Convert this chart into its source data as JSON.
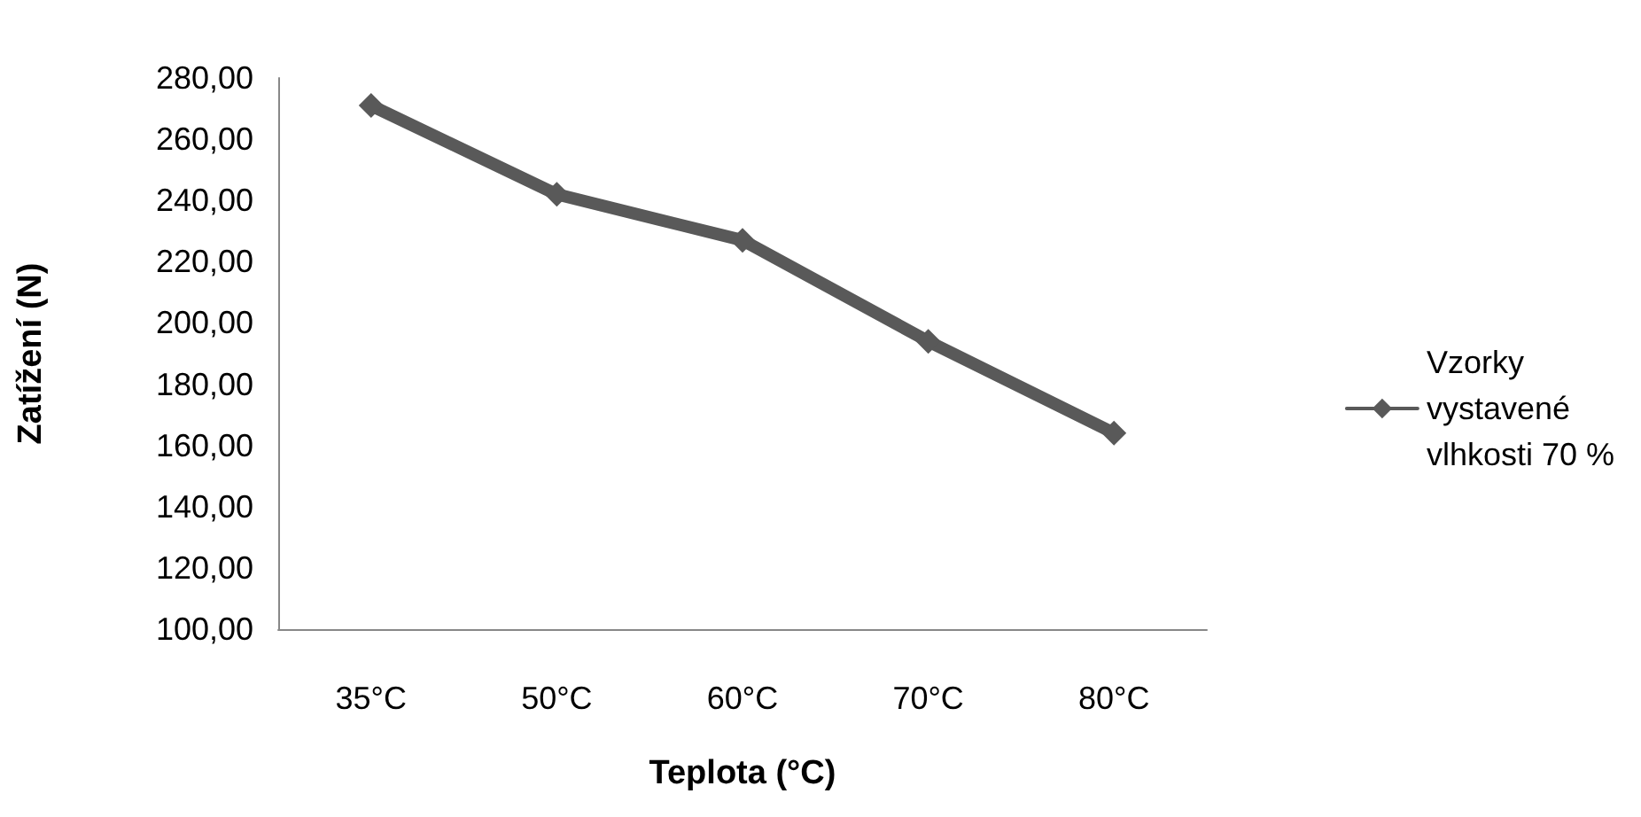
{
  "chart_data": {
    "type": "line",
    "xlabel": "Teplota (°C)",
    "ylabel": "Zatížení (N)",
    "categories": [
      "35°C",
      "50°C",
      "60°C",
      "70°C",
      "80°C"
    ],
    "series": [
      {
        "name": "Vzorky\nvystavené\nvlhkosti 70 %",
        "color": "#595959",
        "values": [
          271,
          242,
          227,
          194,
          164
        ]
      }
    ],
    "ylim": [
      100,
      280
    ],
    "yticks": [
      {
        "value": 100,
        "label": "100,00"
      },
      {
        "value": 120,
        "label": "120,00"
      },
      {
        "value": 140,
        "label": "140,00"
      },
      {
        "value": 160,
        "label": "160,00"
      },
      {
        "value": 180,
        "label": "180,00"
      },
      {
        "value": 200,
        "label": "200,00"
      },
      {
        "value": 220,
        "label": "220,00"
      },
      {
        "value": 240,
        "label": "240,00"
      },
      {
        "value": 260,
        "label": "260,00"
      },
      {
        "value": 280,
        "label": "280,00"
      }
    ],
    "grid": false,
    "legend": "right",
    "marker": "diamond",
    "line_style": "solid"
  }
}
